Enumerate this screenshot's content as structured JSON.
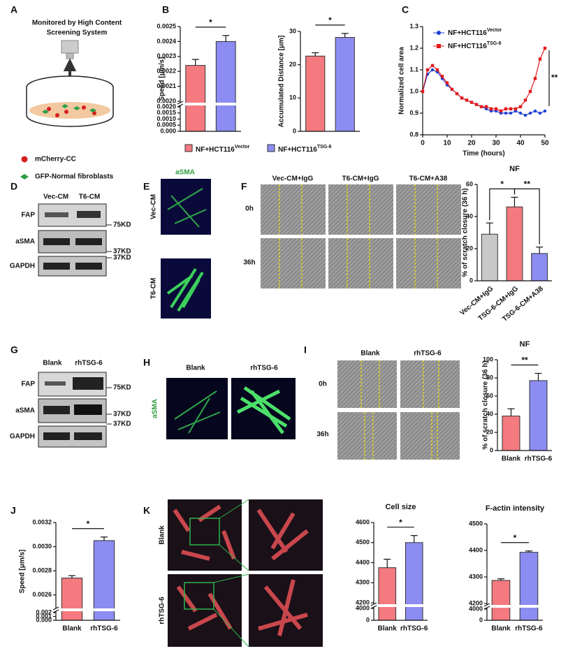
{
  "panel_labels": [
    "A",
    "B",
    "C",
    "D",
    "E",
    "F",
    "G",
    "H",
    "I",
    "J",
    "K"
  ],
  "schematic": {
    "title_lines": [
      "Monitored by High Content",
      "Screening System"
    ],
    "legend": [
      "mCherry-CC",
      "GFP-Normal fibroblasts"
    ]
  },
  "legend_b": [
    {
      "name": "NF+HCT116",
      "sup": "Vector",
      "color": "#f47a7f"
    },
    {
      "name": "NF+HCT116",
      "sup": "TSG-6",
      "color": "#8c8cf2"
    }
  ],
  "blot_d": {
    "lanes": [
      "Vec-CM",
      "T6-CM"
    ],
    "rows": [
      "FAP",
      "aSMA",
      "GAPDH"
    ],
    "markers": [
      "75KD",
      "37KD",
      "37KD"
    ]
  },
  "images_e": {
    "title": "aSMA",
    "rows": [
      "Vec-CM",
      "T6-CM"
    ]
  },
  "images_f": {
    "columns": [
      "Vec-CM+IgG",
      "T6-CM+IgG",
      "T6-CM+A38"
    ],
    "rows": [
      "0h",
      "36h"
    ]
  },
  "blot_g": {
    "lanes": [
      "Blank",
      "rhTSG-6"
    ],
    "rows": [
      "FAP",
      "aSMA",
      "GAPDH"
    ],
    "markers": [
      "75KD",
      "37KD",
      "37KD"
    ]
  },
  "images_h": {
    "columns": [
      "Blank",
      "rhTSG-6"
    ],
    "stain": "aSMA"
  },
  "images_i": {
    "columns": [
      "Blank",
      "rhTSG-6"
    ],
    "rows": [
      "0h",
      "36h"
    ]
  },
  "images_k": {
    "rows": [
      "Blank",
      "rhTSG-6"
    ]
  },
  "chart_data": [
    {
      "type": "bar",
      "ylabel": "Speed [μm/s]",
      "values": [
        0.00224,
        0.0024
      ],
      "errors": [
        4e-05,
        4e-05
      ],
      "colors": [
        "#f47a7f",
        "#8c8cf2"
      ],
      "ylim": [
        0.002,
        0.0025
      ],
      "yticks": [
        {
          "value": 0.002,
          "label": "0.0020"
        },
        0.0021,
        0.0022,
        0.0023,
        0.0024,
        0.0025
      ],
      "ylim_lower": [
        0,
        0.002
      ],
      "yticks_lower": [
        {
          "value": 0,
          "label": "0.000"
        },
        0.0005,
        {
          "value": 0.001,
          "label": "0.0010"
        },
        0.0015,
        {
          "value": 0.002,
          "label": "0.0020"
        }
      ],
      "significance": [
        "*"
      ]
    },
    {
      "type": "bar",
      "ylabel": "Accumulated Distance [μm]",
      "values": [
        22.6,
        28.2
      ],
      "errors": [
        1.0,
        1.2
      ],
      "colors": [
        "#f47a7f",
        "#8c8cf2"
      ],
      "ylim": [
        0,
        30
      ],
      "yticks": [
        0,
        10,
        20,
        30
      ],
      "significance": [
        "*"
      ]
    },
    {
      "type": "line",
      "xlabel": "Time (hours)",
      "ylabel": "Normalized cell area",
      "x": [
        0,
        2,
        4,
        6,
        8,
        10,
        12,
        14,
        16,
        18,
        20,
        22,
        24,
        26,
        28,
        30,
        32,
        34,
        36,
        38,
        40,
        42,
        44,
        46,
        48,
        50
      ],
      "series": [
        {
          "name": "NF+HCT116",
          "name_sup": "Vector",
          "color": "#1f3fd6",
          "values": [
            1.0,
            1.08,
            1.1,
            1.09,
            1.06,
            1.03,
            1.01,
            0.99,
            0.97,
            0.96,
            0.95,
            0.94,
            0.93,
            0.92,
            0.91,
            0.91,
            0.9,
            0.9,
            0.9,
            0.91,
            0.9,
            0.89,
            0.9,
            0.91,
            0.9,
            0.91
          ]
        },
        {
          "name": "NF+HCT116",
          "name_sup": "TSG-6",
          "color": "#e31a1c",
          "values": [
            1.0,
            1.1,
            1.12,
            1.1,
            1.07,
            1.04,
            1.01,
            0.99,
            0.97,
            0.96,
            0.95,
            0.94,
            0.93,
            0.93,
            0.92,
            0.92,
            0.91,
            0.92,
            0.92,
            0.92,
            0.93,
            0.96,
            1.0,
            1.06,
            1.15,
            1.2
          ]
        }
      ],
      "xlim": [
        0,
        50
      ],
      "xticks": [
        0,
        10,
        20,
        30,
        40,
        50
      ],
      "ylim": [
        0.8,
        1.3
      ],
      "yticks": [
        0.8,
        0.9,
        {
          "value": 1,
          "label": "1.0"
        },
        1.1,
        1.2,
        1.3
      ],
      "significance": [
        "**"
      ]
    },
    {
      "type": "bar",
      "title": "NF",
      "ylabel": "% of scratch closure (36 h)",
      "categories": [
        "Vec-CM+IgG",
        "TSG-6-CM+IgG",
        "TSG-6-CM+A38"
      ],
      "values": [
        29,
        46,
        17
      ],
      "errors": [
        7,
        6,
        4
      ],
      "colors": [
        "#c8c8c8",
        "#f47a7f",
        "#8c8cf2"
      ],
      "ylim": [
        0,
        60
      ],
      "yticks": [
        0,
        20,
        40,
        60
      ],
      "significance": [
        "*",
        "**"
      ]
    },
    {
      "type": "bar",
      "title": "NF",
      "ylabel": "% of scratch closure (36 h)",
      "categories": [
        "Blank",
        "rhTSG-6"
      ],
      "values": [
        38,
        77
      ],
      "errors": [
        8,
        8
      ],
      "colors": [
        "#f47a7f",
        "#8c8cf2"
      ],
      "ylim": [
        0,
        100
      ],
      "yticks": [
        0,
        20,
        40,
        60,
        80,
        100
      ],
      "significance": [
        "**"
      ]
    },
    {
      "type": "bar",
      "ylabel": "Speed [μm/s]",
      "categories": [
        "Blank",
        "rhTSG-6"
      ],
      "values": [
        0.00274,
        0.00305
      ],
      "errors": [
        2e-05,
        3e-05
      ],
      "colors": [
        "#f47a7f",
        "#8c8cf2"
      ],
      "ylim": [
        0.0025,
        0.0032
      ],
      "yticks": [
        0.0026,
        0.0028,
        {
          "value": 0.003,
          "label": "0.0030"
        },
        0.0032
      ],
      "ylim_lower": [
        0,
        0.002
      ],
      "yticks_lower": [
        {
          "value": 0,
          "label": "0.000"
        },
        0.001,
        0.002
      ],
      "significance": [
        "*"
      ]
    },
    {
      "type": "bar",
      "title": "Cell size",
      "categories": [
        "Blank",
        "rhTSG-6"
      ],
      "values": [
        4375,
        4500
      ],
      "errors": [
        42,
        35
      ],
      "colors": [
        "#f47a7f",
        "#8c8cf2"
      ],
      "ylim": [
        4200,
        4600
      ],
      "yticks": [
        4200,
        4300,
        4400,
        4500,
        4600
      ],
      "ylim_lower": [
        0,
        4000
      ],
      "yticks_lower": [
        0,
        4000
      ],
      "significance": [
        "*"
      ]
    },
    {
      "type": "bar",
      "title": "F-actin intensity",
      "categories": [
        "Blank",
        "rhTSG-6"
      ],
      "values": [
        4287,
        4393
      ],
      "errors": [
        6,
        5
      ],
      "colors": [
        "#f47a7f",
        "#8c8cf2"
      ],
      "ylim": [
        4200,
        4500
      ],
      "yticks": [
        4200,
        4300,
        4400,
        4500
      ],
      "ylim_lower": [
        0,
        4000
      ],
      "yticks_lower": [
        0,
        4000
      ],
      "significance": [
        "*"
      ]
    }
  ]
}
